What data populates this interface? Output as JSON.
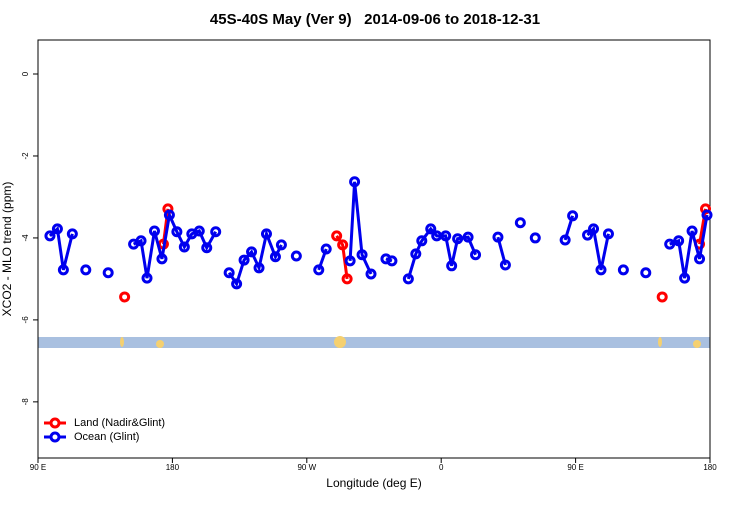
{
  "chart_data": {
    "type": "line",
    "title": "45S-40S May (Ver 9)   2014-09-06 to 2018-12-31",
    "x_label": "Longitude (deg E)",
    "y_label": "XCO2 - MLO trend (ppm)",
    "xlim": [
      90,
      540
    ],
    "ylim": [
      0.83,
      -9.37
    ],
    "xticks": [
      {
        "value": 90,
        "label": "90 E"
      },
      {
        "value": 180,
        "label": "180"
      },
      {
        "value": 270,
        "label": "90 W"
      },
      {
        "value": 360,
        "label": "0"
      },
      {
        "value": 450,
        "label": "90 E"
      },
      {
        "value": 540,
        "label": "180"
      }
    ],
    "yticks": [
      0,
      -2,
      -4,
      -6,
      -8
    ],
    "legend": "bottom-left",
    "series": [
      {
        "name": "Ocean (Glint)",
        "color": "#0000ee",
        "x": [
          98,
          103,
          107,
          113,
          null,
          122,
          null,
          137,
          null,
          154,
          159,
          163,
          168,
          173,
          178,
          183,
          188,
          193,
          198,
          203,
          209,
          null,
          218,
          223,
          228,
          233,
          238,
          243,
          249,
          253,
          null,
          263,
          null,
          278,
          283,
          null,
          299,
          302,
          307,
          313,
          null,
          323,
          327,
          null,
          338,
          343,
          347,
          353,
          357,
          363,
          367,
          371,
          378,
          383,
          null,
          398,
          403,
          null,
          413,
          null,
          423,
          null,
          443,
          448,
          null,
          458,
          462,
          467,
          472,
          null,
          482,
          null,
          497,
          null,
          513,
          519,
          523,
          528,
          533,
          538
        ],
        "values": [
          -3.95,
          -3.78,
          -4.78,
          -3.9,
          null,
          -4.78,
          null,
          -4.85,
          null,
          -4.15,
          -4.07,
          -4.98,
          -3.83,
          -4.51,
          -3.44,
          -3.85,
          -4.22,
          -3.9,
          -3.83,
          -4.24,
          -3.85,
          null,
          -4.85,
          -5.12,
          -4.54,
          -4.34,
          -4.73,
          -3.9,
          -4.46,
          -4.17,
          null,
          -4.44,
          null,
          -4.78,
          -4.27,
          null,
          -4.56,
          -2.63,
          -4.41,
          -4.88,
          null,
          -4.51,
          -4.56,
          null,
          -5.0,
          -4.39,
          -4.07,
          -3.78,
          -3.95,
          -3.95,
          -4.68,
          -4.02,
          -3.98,
          -4.41,
          null,
          -3.98,
          -4.66,
          null,
          -3.63,
          null,
          -4.0,
          null,
          -4.05,
          -3.46,
          null,
          -3.93,
          -3.78,
          -4.78,
          -3.9,
          null,
          -4.78,
          null,
          -4.85,
          null,
          -4.15,
          -4.07,
          -4.98,
          -3.83,
          -4.51,
          -3.44
        ]
      },
      {
        "name": "Land (Nadir&Glint)",
        "color": "#ff0000",
        "x": [
          148,
          null,
          174,
          177,
          null,
          290,
          294,
          297,
          null,
          508,
          null,
          533,
          537
        ],
        "values": [
          -5.44,
          null,
          -4.15,
          -3.29,
          null,
          -3.95,
          -4.17,
          -5.0,
          null,
          -5.44,
          null,
          -4.15,
          -3.29
        ]
      }
    ]
  }
}
